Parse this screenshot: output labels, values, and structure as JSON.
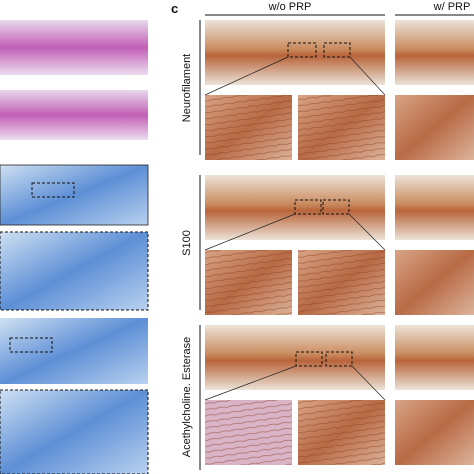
{
  "panel_label": "c",
  "columns": [
    "w/o PRP",
    "w/ PRP"
  ],
  "rows": [
    "Neurofilament",
    "S100",
    "Acethylcholine. Esterase"
  ]
}
